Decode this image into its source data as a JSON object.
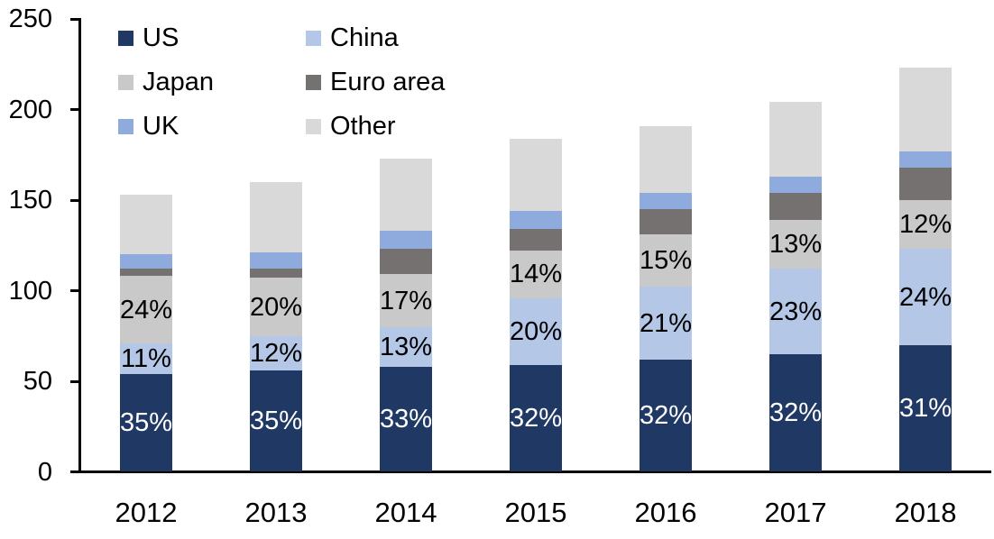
{
  "chart_data": {
    "type": "bar",
    "variant": "stacked-column",
    "title": "",
    "categories": [
      "2012",
      "2013",
      "2014",
      "2015",
      "2016",
      "2017",
      "2018"
    ],
    "series": [
      {
        "name": "US",
        "color": "#1F3864",
        "label_text_color": "#FFFFFF",
        "values": [
          54,
          56,
          58,
          59,
          62,
          65,
          70
        ],
        "labels": [
          "35%",
          "35%",
          "33%",
          "32%",
          "32%",
          "32%",
          "31%"
        ]
      },
      {
        "name": "China",
        "color": "#B4C7E7",
        "label_text_color": "#000000",
        "values": [
          17,
          19,
          22,
          37,
          40,
          47,
          53
        ],
        "labels": [
          "11%",
          "12%",
          "13%",
          "20%",
          "21%",
          "23%",
          "24%"
        ]
      },
      {
        "name": "Japan",
        "color": "#C9C9C9",
        "label_text_color": "#000000",
        "values": [
          37,
          32,
          29,
          26,
          29,
          27,
          27
        ],
        "labels": [
          "24%",
          "20%",
          "17%",
          "14%",
          "15%",
          "13%",
          "12%"
        ]
      },
      {
        "name": "Euro area",
        "color": "#767171",
        "label_text_color": null,
        "values": [
          4,
          5,
          14,
          12,
          14,
          15,
          18
        ],
        "labels": null
      },
      {
        "name": "UK",
        "color": "#8FAADC",
        "label_text_color": null,
        "values": [
          8,
          9,
          10,
          10,
          9,
          9,
          9
        ],
        "labels": null
      },
      {
        "name": "Other",
        "color": "#D9D9D9",
        "label_text_color": null,
        "values": [
          33,
          39,
          40,
          40,
          37,
          41,
          46
        ],
        "labels": null
      }
    ],
    "stack_order_bottom_to_top": [
      "US",
      "China",
      "Japan",
      "Euro area",
      "UK",
      "Other"
    ],
    "totals": [
      153,
      160,
      173,
      184,
      191,
      204,
      223
    ],
    "y_axis": {
      "min": 0,
      "max": 250,
      "tick_step": 50,
      "tick_labels": [
        "0",
        "50",
        "100",
        "150",
        "200",
        "250"
      ]
    },
    "x_axis": {
      "tick_labels": [
        "2012",
        "2013",
        "2014",
        "2015",
        "2016",
        "2017",
        "2018"
      ]
    },
    "legend": {
      "position": "top-left",
      "columns": 2,
      "entries": [
        "US",
        "China",
        "Japan",
        "Euro area",
        "UK",
        "Other"
      ]
    },
    "grid": "off",
    "axis_color": "#000000",
    "background_color": "#FFFFFF"
  }
}
